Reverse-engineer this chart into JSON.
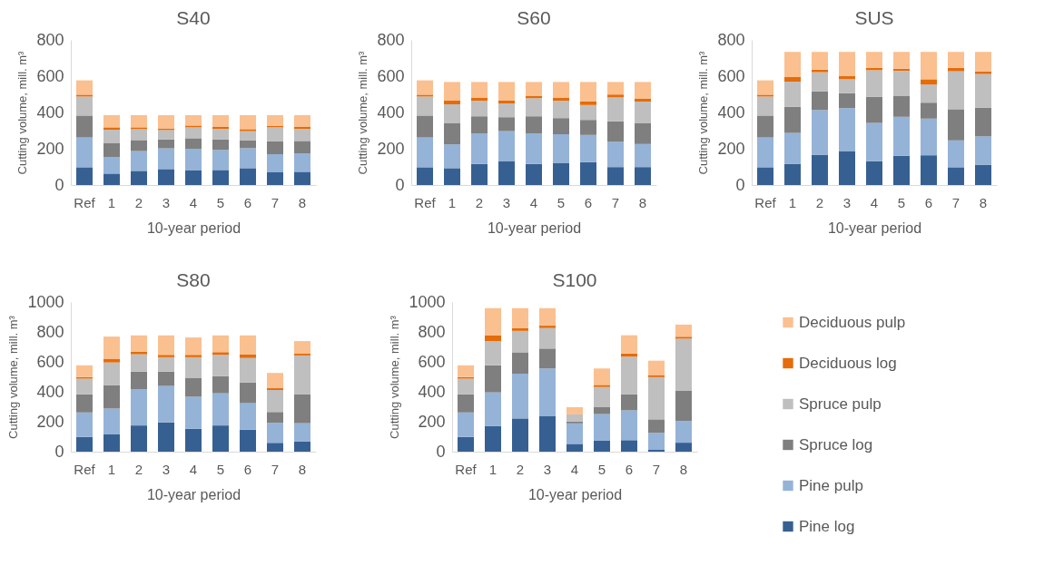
{
  "chart_data": [
    {
      "type": "bar",
      "title": "S40",
      "xlabel": "10-year period",
      "ylabel": "Cutting volume, mill. m³",
      "stacked": true,
      "ylim": [
        0,
        800
      ],
      "yticks": [
        0,
        200,
        400,
        600,
        800
      ],
      "categories": [
        "Ref",
        "1",
        "2",
        "3",
        "4",
        "5",
        "6",
        "7",
        "8"
      ],
      "series": [
        {
          "color": "#376092",
          "values": [
            98,
            63,
            78,
            88,
            80,
            83,
            93,
            70,
            73
          ]
        },
        {
          "color": "#95b3d7",
          "values": [
            164,
            90,
            109,
            114,
            118,
            110,
            110,
            100,
            102
          ]
        },
        {
          "color": "#7f7f7f",
          "values": [
            121,
            77,
            61,
            50,
            60,
            59,
            44,
            72,
            68
          ]
        },
        {
          "color": "#bfbfbf",
          "values": [
            105,
            75,
            60,
            51,
            60,
            58,
            50,
            76,
            67
          ]
        },
        {
          "color": "#e46c0a",
          "values": [
            10,
            13,
            10,
            9,
            10,
            12,
            11,
            9,
            10
          ]
        },
        {
          "color": "#fac090",
          "values": [
            79,
            67,
            67,
            73,
            57,
            63,
            77,
            58,
            65
          ]
        }
      ]
    },
    {
      "type": "bar",
      "title": "S60",
      "xlabel": "10-year period",
      "ylabel": "Cutting volume, mill. m³",
      "stacked": true,
      "ylim": [
        0,
        800
      ],
      "yticks": [
        0,
        200,
        400,
        600,
        800
      ],
      "categories": [
        "Ref",
        "1",
        "2",
        "3",
        "4",
        "5",
        "6",
        "7",
        "8"
      ],
      "series": [
        {
          "color": "#376092",
          "values": [
            98,
            93,
            116,
            130,
            116,
            120,
            126,
            99,
            99
          ]
        },
        {
          "color": "#95b3d7",
          "values": [
            164,
            131,
            169,
            167,
            169,
            160,
            150,
            139,
            127
          ]
        },
        {
          "color": "#7f7f7f",
          "values": [
            121,
            116,
            94,
            77,
            94,
            89,
            83,
            113,
            114
          ]
        },
        {
          "color": "#bfbfbf",
          "values": [
            105,
            105,
            86,
            76,
            100,
            96,
            82,
            132,
            120
          ]
        },
        {
          "color": "#e46c0a",
          "values": [
            10,
            20,
            15,
            15,
            11,
            15,
            21,
            16,
            15
          ]
        },
        {
          "color": "#fac090",
          "values": [
            79,
            103,
            88,
            103,
            78,
            88,
            106,
            69,
            93
          ]
        }
      ]
    },
    {
      "type": "bar",
      "title": "SUS",
      "xlabel": "10-year period",
      "ylabel": "Cutting volume, mill. m³",
      "stacked": true,
      "ylim": [
        0,
        800
      ],
      "yticks": [
        0,
        200,
        400,
        600,
        800
      ],
      "categories": [
        "Ref",
        "1",
        "2",
        "3",
        "4",
        "5",
        "6",
        "7",
        "8"
      ],
      "series": [
        {
          "color": "#376092",
          "values": [
            98,
            117,
            167,
            185,
            132,
            161,
            164,
            98,
            112
          ]
        },
        {
          "color": "#95b3d7",
          "values": [
            164,
            170,
            246,
            239,
            210,
            215,
            202,
            148,
            156
          ]
        },
        {
          "color": "#7f7f7f",
          "values": [
            121,
            144,
            104,
            82,
            145,
            114,
            88,
            172,
            158
          ]
        },
        {
          "color": "#bfbfbf",
          "values": [
            105,
            139,
            105,
            77,
            146,
            140,
            100,
            209,
            186
          ]
        },
        {
          "color": "#e46c0a",
          "values": [
            10,
            27,
            14,
            19,
            13,
            11,
            29,
            19,
            14
          ]
        },
        {
          "color": "#fac090",
          "values": [
            79,
            137,
            98,
            132,
            88,
            93,
            151,
            88,
            108
          ]
        }
      ]
    },
    {
      "type": "bar",
      "title": "S80",
      "xlabel": "10-year period",
      "ylabel": "Cutting volume, mill. m³",
      "stacked": true,
      "ylim": [
        0,
        1000
      ],
      "yticks": [
        0,
        200,
        400,
        600,
        800,
        {
          "value": 1000,
          "label": "1000"
        }
      ],
      "categories": [
        "Ref",
        "1",
        "2",
        "3",
        "4",
        "5",
        "6",
        "7",
        "8"
      ],
      "series": [
        {
          "color": "#376092",
          "values": [
            98,
            118,
            175,
            196,
            153,
            175,
            147,
            59,
            67
          ]
        },
        {
          "color": "#95b3d7",
          "values": [
            164,
            170,
            241,
            243,
            214,
            215,
            177,
            133,
            123
          ]
        },
        {
          "color": "#7f7f7f",
          "values": [
            121,
            157,
            119,
            96,
            127,
            114,
            139,
            73,
            192
          ]
        },
        {
          "color": "#bfbfbf",
          "values": [
            105,
            151,
            116,
            96,
            137,
            143,
            163,
            147,
            261
          ]
        },
        {
          "color": "#e46c0a",
          "values": [
            10,
            25,
            16,
            16,
            16,
            18,
            23,
            12,
            14
          ]
        },
        {
          "color": "#fac090",
          "values": [
            79,
            148,
            110,
            130,
            116,
            112,
            128,
            102,
            82
          ]
        }
      ]
    },
    {
      "type": "bar",
      "title": "S100",
      "xlabel": "10-year period",
      "ylabel": "Cutting volume, mill. m³",
      "stacked": true,
      "legend": "right",
      "ylim": [
        0,
        1000
      ],
      "yticks": [
        0,
        200,
        400,
        600,
        800,
        {
          "value": 1000,
          "label": "1000"
        }
      ],
      "categories": [
        "Ref",
        "1",
        "2",
        "3",
        "4",
        "5",
        "6",
        "7",
        "8"
      ],
      "series": [
        {
          "name": "Pine log",
          "color": "#376092",
          "values": [
            98,
            172,
            222,
            237,
            52,
            73,
            77,
            15,
            60
          ]
        },
        {
          "name": "Pine pulp",
          "color": "#95b3d7",
          "values": [
            164,
            224,
            299,
            319,
            137,
            178,
            199,
            110,
            145
          ]
        },
        {
          "name": "Spruce log",
          "color": "#7f7f7f",
          "values": [
            121,
            181,
            143,
            133,
            12,
            46,
            108,
            91,
            204
          ]
        },
        {
          "name": "Spruce pulp",
          "color": "#bfbfbf",
          "values": [
            105,
            162,
            143,
            137,
            48,
            135,
            251,
            282,
            346
          ]
        },
        {
          "name": "Deciduous log",
          "color": "#e46c0a",
          "values": [
            10,
            37,
            19,
            16,
            null,
            14,
            21,
            14,
            13
          ]
        },
        {
          "name": "Deciduous pulp",
          "color": "#fac090",
          "values": [
            79,
            183,
            133,
            117,
            48,
            110,
            122,
            96,
            81
          ]
        }
      ]
    }
  ]
}
